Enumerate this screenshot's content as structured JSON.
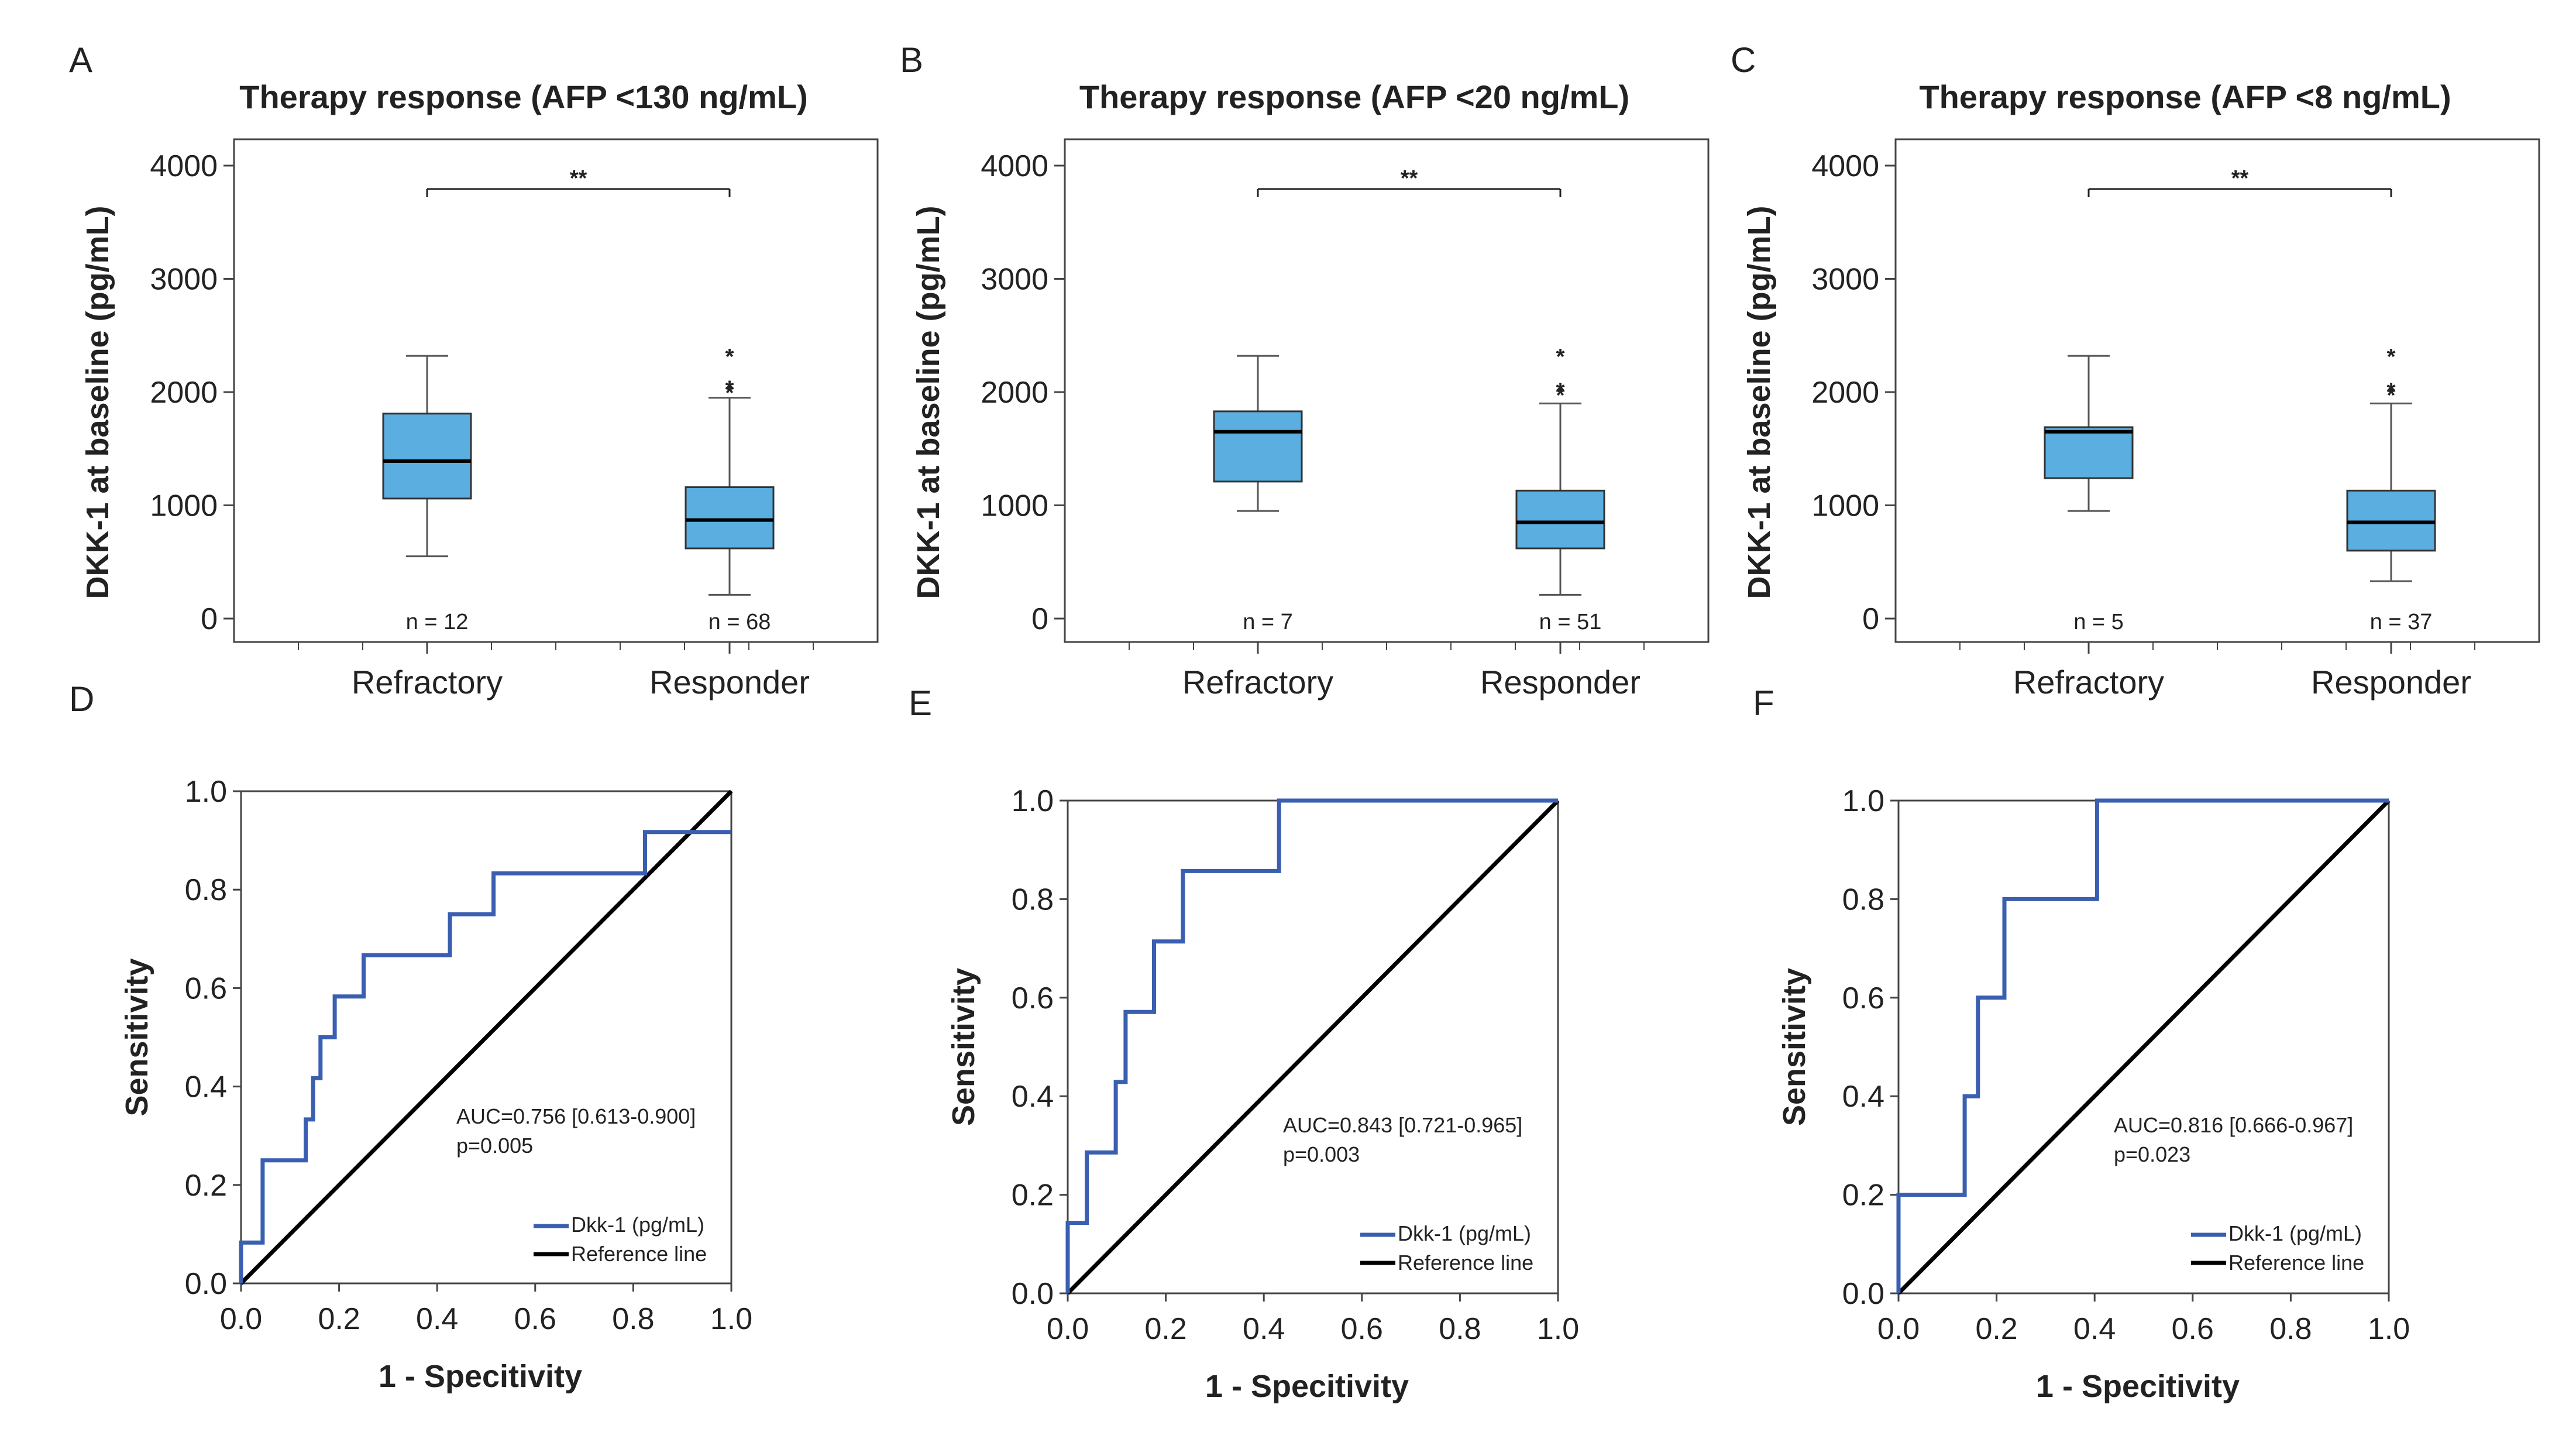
{
  "colors": {
    "box": "#5aaee0",
    "roc": "#3a5fb0",
    "ref": "#000000"
  },
  "chart_data": [
    {
      "panel": "A",
      "type": "box",
      "title": "Therapy response (AFP <130 ng/mL)",
      "ylabel": "DKK-1 at baseline (pg/mL)",
      "ylim": [
        0,
        4000
      ],
      "yticks": [
        0,
        1000,
        2000,
        3000,
        4000
      ],
      "categories": [
        "Refractory",
        "Responder"
      ],
      "significance": "**",
      "groups": [
        {
          "name": "Refractory",
          "n_label": "n = 12",
          "min": 550,
          "q1": 1060,
          "median": 1390,
          "q3": 1810,
          "max": 2320,
          "outliers": []
        },
        {
          "name": "Responder",
          "n_label": "n = 68",
          "min": 210,
          "q1": 620,
          "median": 870,
          "q3": 1160,
          "max": 1950,
          "outliers": [
            2000,
            2040,
            2320
          ]
        }
      ]
    },
    {
      "panel": "B",
      "type": "box",
      "title": "Therapy response (AFP <20 ng/mL)",
      "ylabel": "DKK-1 at baseline (pg/mL)",
      "ylim": [
        0,
        4000
      ],
      "yticks": [
        0,
        1000,
        2000,
        3000,
        4000
      ],
      "categories": [
        "Refractory",
        "Responder"
      ],
      "significance": "**",
      "groups": [
        {
          "name": "Refractory",
          "n_label": "n = 7",
          "min": 950,
          "q1": 1210,
          "median": 1650,
          "q3": 1830,
          "max": 2320,
          "outliers": []
        },
        {
          "name": "Responder",
          "n_label": "n = 51",
          "min": 210,
          "q1": 620,
          "median": 850,
          "q3": 1130,
          "max": 1900,
          "outliers": [
            1980,
            2020,
            2320
          ]
        }
      ]
    },
    {
      "panel": "C",
      "type": "box",
      "title": "Therapy response (AFP <8 ng/mL)",
      "ylabel": "DKK-1 at baseline (pg/mL)",
      "ylim": [
        0,
        4000
      ],
      "yticks": [
        0,
        1000,
        2000,
        3000,
        4000
      ],
      "categories": [
        "Refractory",
        "Responder"
      ],
      "significance": "**",
      "groups": [
        {
          "name": "Refractory",
          "n_label": "n = 5",
          "min": 950,
          "q1": 1240,
          "median": 1650,
          "q3": 1690,
          "max": 2320,
          "outliers": []
        },
        {
          "name": "Responder",
          "n_label": "n = 37",
          "min": 330,
          "q1": 600,
          "median": 850,
          "q3": 1130,
          "max": 1900,
          "outliers": [
            1980,
            2020,
            2320
          ]
        }
      ]
    },
    {
      "panel": "D",
      "type": "line",
      "xlabel": "1 - Specitivity",
      "ylabel": "Sensitivity",
      "xlim": [
        0,
        1
      ],
      "ylim": [
        0,
        1
      ],
      "ticks": [
        "0.0",
        "0.2",
        "0.4",
        "0.6",
        "0.8",
        "1.0"
      ],
      "auc_text": "AUC=0.756 [0.613-0.900]",
      "p_text": "p=0.005",
      "legend": [
        "Dkk-1 (pg/mL)",
        "Reference line"
      ],
      "series": [
        {
          "name": "Dkk-1 (pg/mL)",
          "x": [
            0,
            0,
            0.044,
            0.044,
            0.132,
            0.132,
            0.147,
            0.147,
            0.162,
            0.162,
            0.191,
            0.191,
            0.25,
            0.25,
            0.426,
            0.426,
            0.515,
            0.515,
            0.824,
            0.824,
            1.0
          ],
          "y": [
            0,
            0.083,
            0.083,
            0.25,
            0.25,
            0.333,
            0.333,
            0.417,
            0.417,
            0.5,
            0.5,
            0.583,
            0.583,
            0.667,
            0.667,
            0.75,
            0.75,
            0.833,
            0.833,
            0.917,
            0.917
          ]
        },
        {
          "name": "Reference line",
          "x": [
            0,
            1
          ],
          "y": [
            0,
            1
          ]
        }
      ]
    },
    {
      "panel": "E",
      "type": "line",
      "xlabel": "1 - Specitivity",
      "ylabel": "Sensitivity",
      "xlim": [
        0,
        1
      ],
      "ylim": [
        0,
        1
      ],
      "ticks": [
        "0.0",
        "0.2",
        "0.4",
        "0.6",
        "0.8",
        "1.0"
      ],
      "auc_text": "AUC=0.843 [0.721-0.965]",
      "p_text": "p=0.003",
      "legend": [
        "Dkk-1 (pg/mL)",
        "Reference line"
      ],
      "series": [
        {
          "name": "Dkk-1 (pg/mL)",
          "x": [
            0,
            0,
            0.039,
            0.039,
            0.098,
            0.098,
            0.118,
            0.118,
            0.176,
            0.176,
            0.235,
            0.235,
            0.431,
            0.431,
            1.0
          ],
          "y": [
            0,
            0.143,
            0.143,
            0.286,
            0.286,
            0.429,
            0.429,
            0.571,
            0.571,
            0.714,
            0.714,
            0.857,
            0.857,
            1.0,
            1.0
          ]
        },
        {
          "name": "Reference line",
          "x": [
            0,
            1
          ],
          "y": [
            0,
            1
          ]
        }
      ]
    },
    {
      "panel": "F",
      "type": "line",
      "xlabel": "1 - Specitivity",
      "ylabel": "Sensitivity",
      "xlim": [
        0,
        1
      ],
      "ylim": [
        0,
        1
      ],
      "ticks": [
        "0.0",
        "0.2",
        "0.4",
        "0.6",
        "0.8",
        "1.0"
      ],
      "auc_text": "AUC=0.816 [0.666-0.967]",
      "p_text": "p=0.023",
      "legend": [
        "Dkk-1 (pg/mL)",
        "Reference line"
      ],
      "series": [
        {
          "name": "Dkk-1 (pg/mL)",
          "x": [
            0,
            0,
            0.135,
            0.135,
            0.162,
            0.162,
            0.216,
            0.216,
            0.405,
            0.405,
            1.0
          ],
          "y": [
            0,
            0.2,
            0.2,
            0.4,
            0.4,
            0.6,
            0.6,
            0.8,
            0.8,
            1.0,
            1.0
          ]
        },
        {
          "name": "Reference line",
          "x": [
            0,
            1
          ],
          "y": [
            0,
            1
          ]
        }
      ]
    }
  ]
}
